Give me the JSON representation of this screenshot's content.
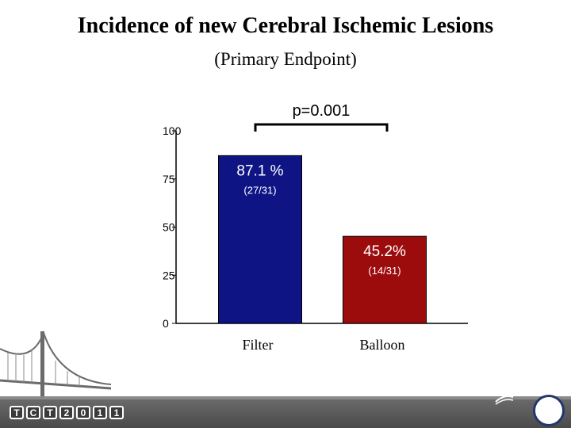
{
  "slide": {
    "title": "Incidence of new Cerebral Ischemic Lesions",
    "subtitle": "(Primary Endpoint)"
  },
  "chart_data": {
    "type": "bar",
    "categories": [
      "Filter",
      "Balloon"
    ],
    "values": [
      87.1,
      45.2
    ],
    "value_labels": [
      "87.1 %",
      "45.2%"
    ],
    "fraction_labels": [
      "(27/31)",
      "(14/31)"
    ],
    "bar_colors": [
      "#0f1484",
      "#9c0c0d"
    ],
    "yticks": [
      0,
      25,
      50,
      75,
      100
    ],
    "ylim": [
      0,
      100
    ],
    "grid": false,
    "annotation": "p=0.001"
  },
  "footer": {
    "logo_letters": [
      "T",
      "C",
      "T",
      "2",
      "0",
      "1",
      "1"
    ]
  },
  "icons": [
    "bridge-icon",
    "crf-logo-icon",
    "seal-icon"
  ]
}
